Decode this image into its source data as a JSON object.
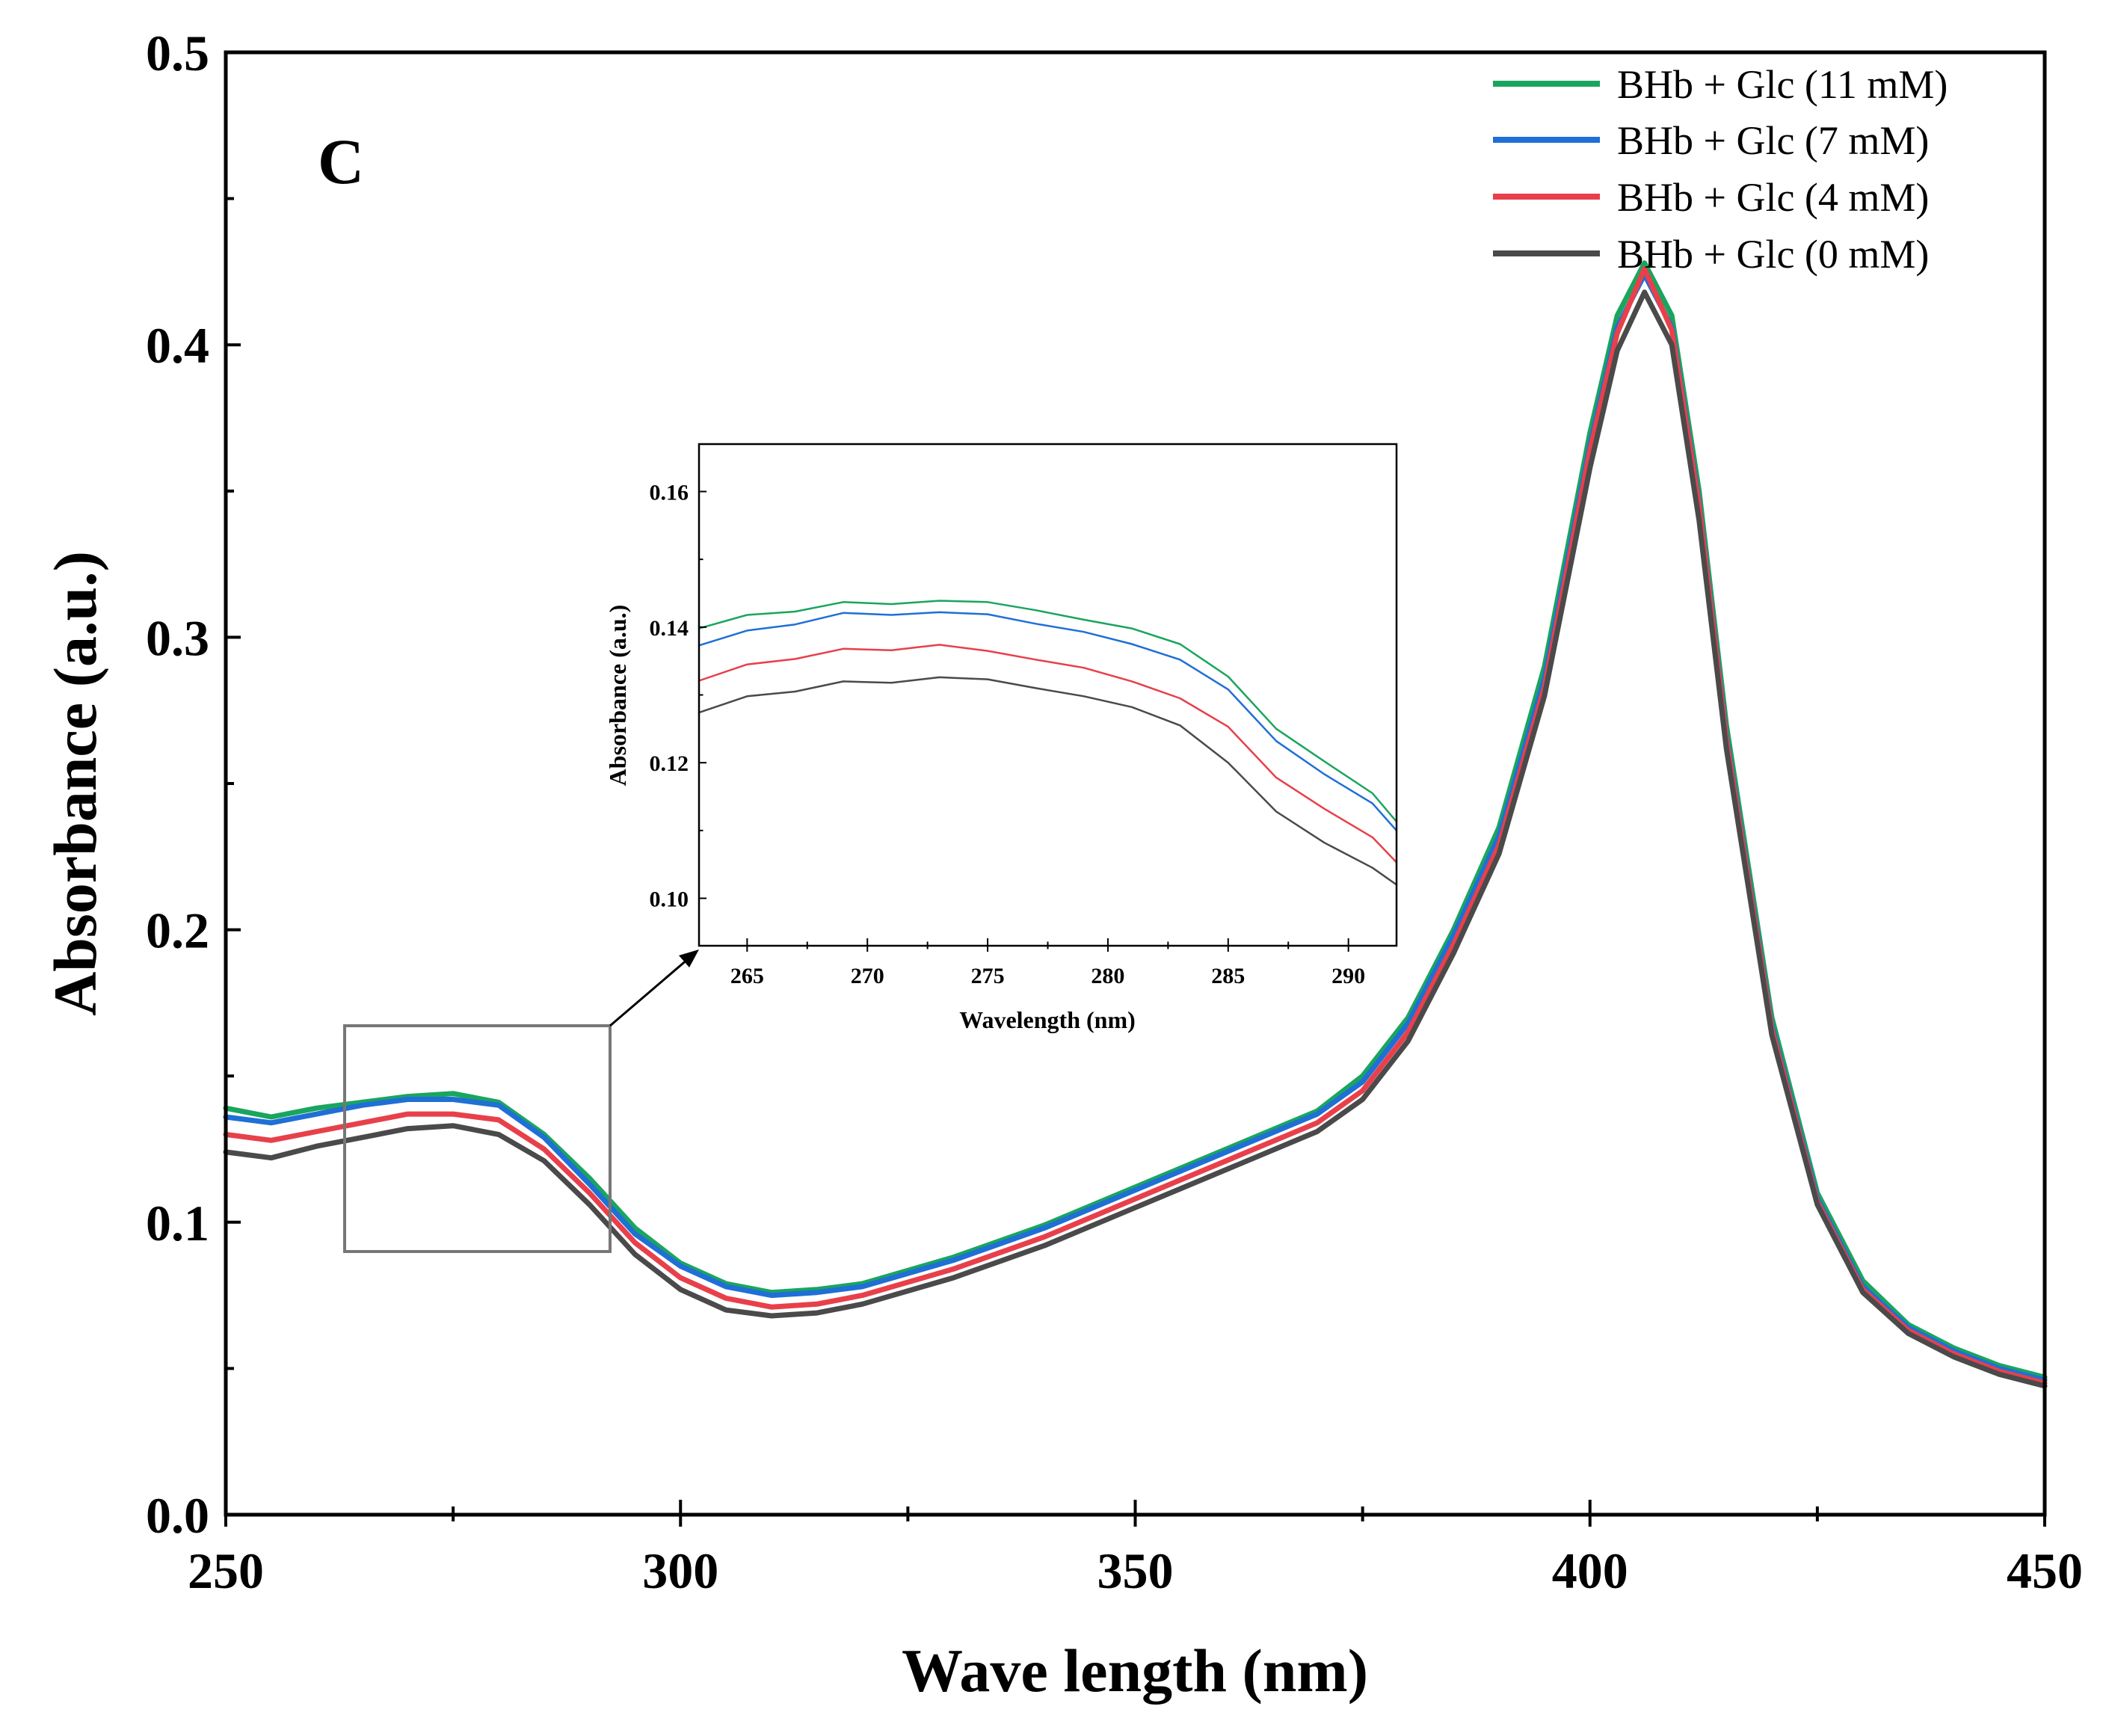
{
  "chart_data": [
    {
      "type": "line",
      "panel_label": "C",
      "xlabel": "Wave length (nm)",
      "ylabel": "Absorbance (a.u.)",
      "xlim": [
        250,
        450
      ],
      "ylim": [
        0.0,
        0.5
      ],
      "x_ticks": [
        250,
        300,
        350,
        400,
        450
      ],
      "x_tick_labels": [
        "250",
        "300",
        "350",
        "400",
        "450"
      ],
      "y_ticks": [
        0.0,
        0.1,
        0.2,
        0.3,
        0.4,
        0.5
      ],
      "y_tick_labels": [
        "0.0",
        "0.1",
        "0.2",
        "0.3",
        "0.4",
        "0.5"
      ],
      "legend_position": "top-right",
      "zoom_region": {
        "x": [
          263,
          292
        ],
        "y": [
          0.09,
          0.167
        ]
      },
      "x": [
        250,
        255,
        260,
        265,
        270,
        275,
        280,
        285,
        290,
        295,
        300,
        305,
        310,
        315,
        320,
        330,
        340,
        350,
        360,
        370,
        375,
        380,
        385,
        390,
        395,
        400,
        403,
        406,
        409,
        412,
        415,
        420,
        425,
        430,
        435,
        440,
        445,
        450
      ],
      "series": [
        {
          "name": "BHb +  Glc (11 mM)",
          "color": "#1aa55f",
          "values": [
            0.139,
            0.136,
            0.139,
            0.141,
            0.143,
            0.144,
            0.141,
            0.13,
            0.115,
            0.098,
            0.086,
            0.079,
            0.076,
            0.077,
            0.079,
            0.088,
            0.099,
            0.112,
            0.125,
            0.138,
            0.15,
            0.17,
            0.2,
            0.235,
            0.29,
            0.37,
            0.41,
            0.428,
            0.41,
            0.35,
            0.27,
            0.17,
            0.11,
            0.08,
            0.065,
            0.057,
            0.051,
            0.047
          ]
        },
        {
          "name": "BHb +  Glc (7 mM)",
          "color": "#1f6fd6",
          "values": [
            0.136,
            0.134,
            0.137,
            0.14,
            0.142,
            0.142,
            0.14,
            0.129,
            0.113,
            0.096,
            0.085,
            0.078,
            0.075,
            0.076,
            0.078,
            0.087,
            0.098,
            0.111,
            0.124,
            0.137,
            0.148,
            0.168,
            0.198,
            0.232,
            0.286,
            0.366,
            0.406,
            0.424,
            0.406,
            0.346,
            0.266,
            0.167,
            0.108,
            0.078,
            0.064,
            0.056,
            0.05,
            0.046
          ]
        },
        {
          "name": "BHb +  Glc (4 mM)",
          "color": "#e8404a",
          "values": [
            0.13,
            0.128,
            0.131,
            0.134,
            0.137,
            0.137,
            0.135,
            0.125,
            0.11,
            0.093,
            0.081,
            0.074,
            0.071,
            0.072,
            0.075,
            0.084,
            0.095,
            0.108,
            0.121,
            0.134,
            0.145,
            0.165,
            0.195,
            0.229,
            0.283,
            0.364,
            0.404,
            0.426,
            0.405,
            0.345,
            0.265,
            0.166,
            0.107,
            0.077,
            0.063,
            0.055,
            0.049,
            0.045
          ]
        },
        {
          "name": "BHb +  Glc (0 mM)",
          "color": "#4a4a4a",
          "values": [
            0.124,
            0.122,
            0.126,
            0.129,
            0.132,
            0.133,
            0.13,
            0.121,
            0.106,
            0.089,
            0.077,
            0.07,
            0.068,
            0.069,
            0.072,
            0.081,
            0.092,
            0.105,
            0.118,
            0.131,
            0.142,
            0.162,
            0.192,
            0.226,
            0.28,
            0.358,
            0.398,
            0.418,
            0.4,
            0.34,
            0.262,
            0.164,
            0.106,
            0.076,
            0.062,
            0.054,
            0.048,
            0.044
          ]
        }
      ]
    },
    {
      "type": "line",
      "xlabel": "Wavelength (nm)",
      "ylabel": "Absorbance (a.u.)",
      "xlim": [
        263,
        292
      ],
      "ylim": [
        0.093,
        0.167
      ],
      "x_ticks": [
        265,
        270,
        275,
        280,
        285,
        290
      ],
      "x_tick_labels": [
        "265",
        "270",
        "275",
        "280",
        "285",
        "290"
      ],
      "y_ticks": [
        0.1,
        0.12,
        0.14,
        0.16
      ],
      "y_tick_labels": [
        "0.10",
        "0.12",
        "0.14",
        "0.16"
      ],
      "x": [
        263,
        265,
        267,
        269,
        271,
        273,
        275,
        277,
        279,
        281,
        283,
        285,
        287,
        289,
        291,
        292
      ],
      "series": [
        {
          "name": "BHb +  Glc (11 mM)",
          "color": "#1aa55f",
          "values": [
            0.1398,
            0.1418,
            0.1423,
            0.1437,
            0.1434,
            0.1439,
            0.1437,
            0.1425,
            0.1411,
            0.1398,
            0.1375,
            0.1327,
            0.125,
            0.1202,
            0.1155,
            0.1113
          ]
        },
        {
          "name": "BHb +  Glc (7 mM)",
          "color": "#1f6fd6",
          "values": [
            0.1373,
            0.1395,
            0.1404,
            0.1421,
            0.1418,
            0.1422,
            0.1419,
            0.1405,
            0.1393,
            0.1375,
            0.1352,
            0.1308,
            0.1232,
            0.1183,
            0.114,
            0.11
          ]
        },
        {
          "name": "BHb +  Glc (4 mM)",
          "color": "#e8404a",
          "values": [
            0.1321,
            0.1345,
            0.1353,
            0.1368,
            0.1366,
            0.1374,
            0.1365,
            0.1352,
            0.134,
            0.132,
            0.1295,
            0.1253,
            0.1178,
            0.1132,
            0.109,
            0.1053
          ]
        },
        {
          "name": "BHb +  Glc (0 mM)",
          "color": "#4a4a4a",
          "values": [
            0.1274,
            0.1298,
            0.1305,
            0.132,
            0.1318,
            0.1326,
            0.1323,
            0.131,
            0.1298,
            0.1282,
            0.1255,
            0.12,
            0.1128,
            0.1082,
            0.1045,
            0.102
          ]
        }
      ]
    }
  ]
}
